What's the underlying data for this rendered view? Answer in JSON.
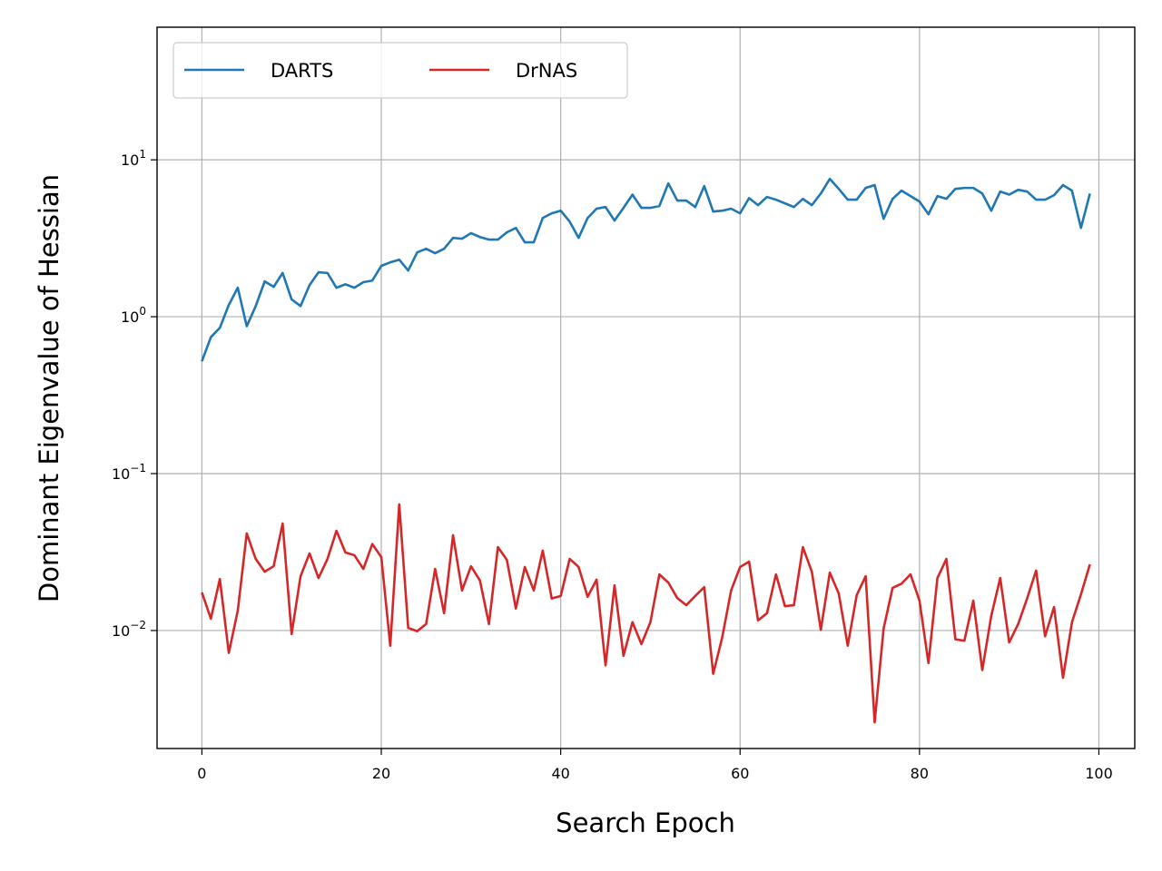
{
  "chart_data": {
    "type": "line",
    "log_y": true,
    "grid": true,
    "legend": "upper-left",
    "xlabel": "Search Epoch",
    "ylabel": "Dominant Eigenvalue of Hessian",
    "x": [
      0,
      1,
      2,
      3,
      4,
      5,
      6,
      7,
      8,
      9,
      10,
      11,
      12,
      13,
      14,
      15,
      16,
      17,
      18,
      19,
      20,
      21,
      22,
      23,
      24,
      25,
      26,
      27,
      28,
      29,
      30,
      31,
      32,
      33,
      34,
      35,
      36,
      37,
      38,
      39,
      40,
      41,
      42,
      43,
      44,
      45,
      46,
      47,
      48,
      49,
      50,
      51,
      52,
      53,
      54,
      55,
      56,
      57,
      58,
      59,
      60,
      61,
      62,
      63,
      64,
      65,
      66,
      67,
      68,
      69,
      70,
      71,
      72,
      73,
      74,
      75,
      76,
      77,
      78,
      79,
      80,
      81,
      82,
      83,
      84,
      85,
      86,
      87,
      88,
      89,
      90,
      91,
      92,
      93,
      94,
      95,
      96,
      97,
      98,
      99
    ],
    "xlim": [
      -5,
      104
    ],
    "xticks": [
      0,
      20,
      40,
      60,
      80,
      100
    ],
    "ylim": [
      0.00177,
      70
    ],
    "yticks": [
      {
        "value": 0.01,
        "label": "10^−2"
      },
      {
        "value": 0.1,
        "label": "10^−1"
      },
      {
        "value": 1,
        "label": "10^0"
      },
      {
        "value": 10,
        "label": "10^1"
      }
    ],
    "series": [
      {
        "name": "DARTS",
        "color": "#1f77b4",
        "values": [
          0.52,
          0.74,
          0.85,
          1.19,
          1.53,
          0.87,
          1.17,
          1.68,
          1.55,
          1.9,
          1.29,
          1.17,
          1.59,
          1.92,
          1.9,
          1.53,
          1.61,
          1.53,
          1.66,
          1.7,
          2.11,
          2.22,
          2.31,
          1.97,
          2.57,
          2.71,
          2.54,
          2.71,
          3.18,
          3.14,
          3.41,
          3.22,
          3.1,
          3.1,
          3.45,
          3.68,
          2.98,
          2.98,
          4.26,
          4.56,
          4.74,
          4.04,
          3.18,
          4.26,
          4.88,
          5.0,
          4.1,
          4.94,
          6.0,
          4.94,
          4.94,
          5.07,
          7.08,
          5.5,
          5.5,
          5.0,
          6.8,
          4.68,
          4.74,
          4.88,
          4.56,
          5.7,
          5.14,
          5.8,
          5.57,
          5.28,
          5.0,
          5.64,
          5.14,
          6.1,
          7.56,
          6.53,
          5.57,
          5.57,
          6.62,
          6.9,
          4.21,
          5.64,
          6.36,
          5.87,
          5.42,
          4.5,
          5.87,
          5.64,
          6.53,
          6.62,
          6.62,
          6.1,
          4.74,
          6.28,
          6.0,
          6.44,
          6.28,
          5.57,
          5.57,
          5.95,
          6.9,
          6.36,
          3.68,
          6.1
        ]
      },
      {
        "name": "DrNAS",
        "color": "#d62728",
        "values": [
          0.0175,
          0.0119,
          0.0213,
          0.0072,
          0.0134,
          0.0416,
          0.0286,
          0.0237,
          0.0257,
          0.0481,
          0.0095,
          0.0222,
          0.031,
          0.0216,
          0.0286,
          0.0432,
          0.0314,
          0.0302,
          0.0247,
          0.0356,
          0.0294,
          0.008,
          0.0637,
          0.0104,
          0.0099,
          0.011,
          0.0247,
          0.0129,
          0.0405,
          0.018,
          0.0257,
          0.0208,
          0.011,
          0.034,
          0.0282,
          0.0138,
          0.0254,
          0.018,
          0.0323,
          0.016,
          0.0166,
          0.0286,
          0.0254,
          0.0164,
          0.0211,
          0.006,
          0.0194,
          0.0069,
          0.0113,
          0.0082,
          0.0113,
          0.0228,
          0.0202,
          0.0161,
          0.0145,
          0.0166,
          0.0189,
          0.0053,
          0.009,
          0.018,
          0.0254,
          0.0275,
          0.0116,
          0.0129,
          0.0228,
          0.0143,
          0.0145,
          0.034,
          0.0237,
          0.0101,
          0.0234,
          0.0172,
          0.008,
          0.0168,
          0.0222,
          0.0026,
          0.0103,
          0.0187,
          0.0199,
          0.0228,
          0.0155,
          0.0062,
          0.0216,
          0.0286,
          0.0088,
          0.0086,
          0.0155,
          0.0056,
          0.0124,
          0.0216,
          0.0084,
          0.011,
          0.016,
          0.0241,
          0.0092,
          0.0141,
          0.005,
          0.0113,
          0.017,
          0.0264
        ]
      }
    ]
  }
}
